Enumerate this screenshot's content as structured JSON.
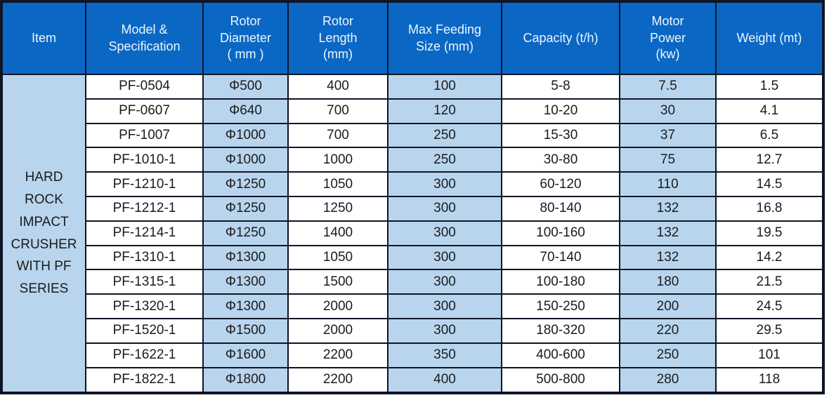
{
  "chart_data": {
    "type": "table",
    "columns": [
      "Item",
      "Model &\nSpecification",
      "Rotor\nDiameter\n( mm )",
      "Rotor\nLength\n(mm)",
      "Max Feeding\nSize (mm)",
      "Capacity (t/h)",
      "Motor\nPower\n(kw)",
      "Weight (mt)"
    ],
    "item_group": {
      "label": "HARD\nROCK\nIMPACT\nCRUSHER\nWITH PF\nSERIES",
      "rowspan": 13
    },
    "rows": [
      [
        "PF-0504",
        "Φ500",
        "400",
        "100",
        "5-8",
        "7.5",
        "1.5"
      ],
      [
        "PF-0607",
        "Φ640",
        "700",
        "120",
        "10-20",
        "30",
        "4.1"
      ],
      [
        "PF-1007",
        "Φ1000",
        "700",
        "250",
        "15-30",
        "37",
        "6.5"
      ],
      [
        "PF-1010-1",
        "Φ1000",
        "1000",
        "250",
        "30-80",
        "75",
        "12.7"
      ],
      [
        "PF-1210-1",
        "Φ1250",
        "1050",
        "300",
        "60-120",
        "110",
        "14.5"
      ],
      [
        "PF-1212-1",
        "Φ1250",
        "1250",
        "300",
        "80-140",
        "132",
        "16.8"
      ],
      [
        "PF-1214-1",
        "Φ1250",
        "1400",
        "300",
        "100-160",
        "132",
        "19.5"
      ],
      [
        "PF-1310-1",
        "Φ1300",
        "1050",
        "300",
        "70-140",
        "132",
        "14.2"
      ],
      [
        "PF-1315-1",
        "Φ1300",
        "1500",
        "300",
        "100-180",
        "180",
        "21.5"
      ],
      [
        "PF-1320-1",
        "Φ1300",
        "2000",
        "300",
        "150-250",
        "200",
        "24.5"
      ],
      [
        "PF-1520-1",
        "Φ1500",
        "2000",
        "300",
        "180-320",
        "220",
        "29.5"
      ],
      [
        "PF-1622-1",
        "Φ1600",
        "2200",
        "350",
        "400-600",
        "250",
        "101"
      ],
      [
        "PF-1822-1",
        "Φ1800",
        "2200",
        "400",
        "500-800",
        "280",
        "118"
      ]
    ]
  },
  "colors": {
    "header_bg": "#0b67c4",
    "header_text": "#eef6fd",
    "shade_bg": "#b9d5ee",
    "white_bg": "#ffffff",
    "border": "#0d1526",
    "body_text": "#1b1b1b"
  }
}
